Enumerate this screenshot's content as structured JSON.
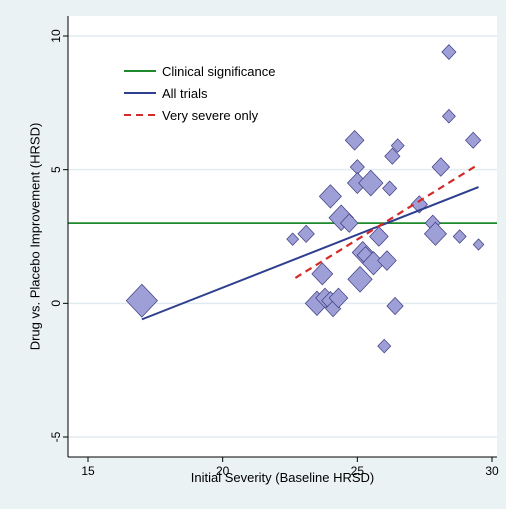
{
  "chart_data": {
    "type": "scatter",
    "title": "",
    "xlabel": "Initial Severity (Baseline HRSD)",
    "ylabel": "Drug vs. Placebo Improvement (HRSD)",
    "xlim": [
      15,
      30
    ],
    "ylim": [
      -5,
      10
    ],
    "x_ticks": [
      15,
      20,
      25,
      30
    ],
    "y_ticks": [
      -5,
      0,
      5,
      10
    ],
    "grid": "horizontal",
    "legend_position": "top-left",
    "colors": {
      "outer_background": "#eaf2f3",
      "plot_background": "#ffffff",
      "gridline": "#e0ecef",
      "marker_fill": "#9f9fd8",
      "marker_stroke": "#3b3b80",
      "clinical": "#1e8a2b",
      "all_trials": "#2f3f8f",
      "very_severe": "#d42a2a"
    },
    "legend": [
      {
        "label": "Clinical significance",
        "color": "#1e8a2b",
        "style": "solid"
      },
      {
        "label": "All trials",
        "color": "#2f3f8f",
        "style": "solid"
      },
      {
        "label": "Very severe only",
        "color": "#d42a2a",
        "style": "dashed"
      }
    ],
    "reference_line": {
      "y": 3
    },
    "fit_lines": [
      {
        "x": [
          17.0,
          29.5
        ],
        "y": [
          -0.6,
          4.35
        ]
      },
      {
        "x": [
          22.7,
          29.5
        ],
        "y": [
          0.95,
          5.2
        ]
      }
    ],
    "points": [
      {
        "x": 17.0,
        "y": 0.1,
        "size": 2.4
      },
      {
        "x": 22.6,
        "y": 2.4,
        "size": 0.7
      },
      {
        "x": 23.1,
        "y": 2.6,
        "size": 1.1
      },
      {
        "x": 23.5,
        "y": 0.0,
        "size": 1.7
      },
      {
        "x": 23.7,
        "y": 1.1,
        "size": 1.5
      },
      {
        "x": 23.8,
        "y": 0.2,
        "size": 1.3
      },
      {
        "x": 24.0,
        "y": 0.1,
        "size": 1.2
      },
      {
        "x": 24.0,
        "y": 4.0,
        "size": 1.6
      },
      {
        "x": 24.1,
        "y": -0.2,
        "size": 1.0
      },
      {
        "x": 24.3,
        "y": 0.2,
        "size": 1.3
      },
      {
        "x": 24.4,
        "y": 3.2,
        "size": 1.8
      },
      {
        "x": 24.7,
        "y": 3.0,
        "size": 1.2
      },
      {
        "x": 24.9,
        "y": 6.1,
        "size": 1.3
      },
      {
        "x": 25.0,
        "y": 5.1,
        "size": 0.9
      },
      {
        "x": 25.0,
        "y": 4.5,
        "size": 1.4
      },
      {
        "x": 25.1,
        "y": 0.9,
        "size": 1.8
      },
      {
        "x": 25.2,
        "y": 1.9,
        "size": 1.5
      },
      {
        "x": 25.3,
        "y": 1.8,
        "size": 1.1
      },
      {
        "x": 25.5,
        "y": 4.5,
        "size": 1.8
      },
      {
        "x": 25.6,
        "y": 1.5,
        "size": 1.6
      },
      {
        "x": 25.8,
        "y": 2.5,
        "size": 1.3
      },
      {
        "x": 26.0,
        "y": -1.6,
        "size": 0.8
      },
      {
        "x": 26.1,
        "y": 1.6,
        "size": 1.3
      },
      {
        "x": 26.2,
        "y": 4.3,
        "size": 0.9
      },
      {
        "x": 26.3,
        "y": 5.5,
        "size": 1.0
      },
      {
        "x": 26.4,
        "y": -0.1,
        "size": 1.1
      },
      {
        "x": 26.5,
        "y": 5.9,
        "size": 0.8
      },
      {
        "x": 27.3,
        "y": 3.7,
        "size": 1.1
      },
      {
        "x": 27.8,
        "y": 3.0,
        "size": 1.0
      },
      {
        "x": 27.9,
        "y": 2.6,
        "size": 1.6
      },
      {
        "x": 28.1,
        "y": 5.1,
        "size": 1.2
      },
      {
        "x": 28.4,
        "y": 7.0,
        "size": 0.8
      },
      {
        "x": 28.4,
        "y": 9.4,
        "size": 0.9
      },
      {
        "x": 28.8,
        "y": 2.5,
        "size": 0.8
      },
      {
        "x": 29.3,
        "y": 6.1,
        "size": 1.0
      },
      {
        "x": 29.5,
        "y": 2.2,
        "size": 0.6
      }
    ]
  }
}
